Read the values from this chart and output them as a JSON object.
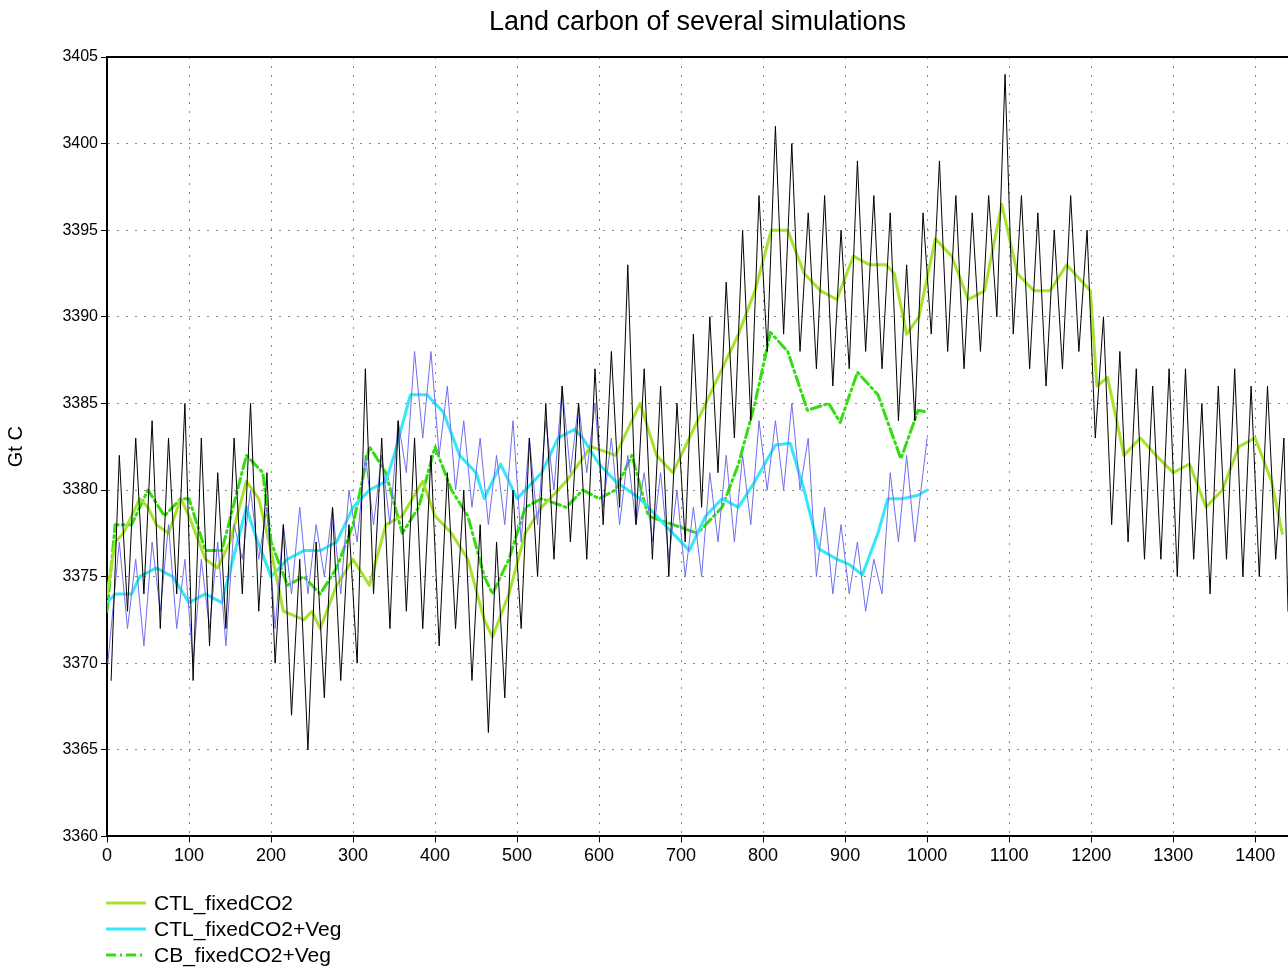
{
  "chart_data": {
    "type": "line",
    "title": "Land carbon of several simulations",
    "ylabel": "Gt C",
    "xlim": [
      0,
      1440
    ],
    "ylim": [
      3360,
      3405
    ],
    "xticks": [
      0,
      100,
      200,
      300,
      400,
      500,
      600,
      700,
      800,
      900,
      1000,
      1100,
      1200,
      1300,
      1400
    ],
    "yticks": [
      3360,
      3365,
      3370,
      3375,
      3380,
      3385,
      3390,
      3395,
      3400,
      3405
    ],
    "grid": true,
    "legend": "bottom left",
    "series": [
      {
        "color": "#000000",
        "line_style": "solid",
        "x": [
          5,
          15,
          25,
          35,
          45,
          55,
          65,
          75,
          85,
          95,
          105,
          115,
          125,
          135,
          145,
          155,
          165,
          175,
          185,
          195,
          205,
          215,
          225,
          235,
          245,
          255,
          265,
          275,
          285,
          295,
          305,
          315,
          325,
          335,
          345,
          355,
          365,
          375,
          385,
          395,
          405,
          415,
          425,
          435,
          445,
          455,
          465,
          475,
          485,
          495,
          505,
          515,
          525,
          535,
          545,
          555,
          565,
          575,
          585,
          595,
          605,
          615,
          625,
          635,
          645,
          655,
          665,
          675,
          685,
          695,
          705,
          715,
          725,
          735,
          745,
          755,
          765,
          775,
          785,
          795,
          805,
          815,
          825,
          835,
          845,
          855,
          865,
          875,
          885,
          895,
          905,
          915,
          925,
          935,
          945,
          955,
          965,
          975,
          985,
          995,
          1005,
          1015,
          1025,
          1035,
          1045,
          1055,
          1065,
          1075,
          1085,
          1095,
          1105,
          1115,
          1125,
          1135,
          1145,
          1155,
          1165,
          1175,
          1185,
          1195,
          1205,
          1215,
          1225,
          1235,
          1245,
          1255,
          1265,
          1275,
          1285,
          1295,
          1305,
          1315,
          1325,
          1335,
          1345,
          1355,
          1365,
          1375,
          1385,
          1395,
          1405,
          1415,
          1425,
          1435,
          1440
        ],
        "values": [
          3369,
          3382,
          3373,
          3383,
          3374,
          3384,
          3372,
          3383,
          3374,
          3385,
          3369,
          3383,
          3371,
          3381,
          3372,
          3383,
          3374,
          3385,
          3373,
          3381,
          3370,
          3378,
          3367,
          3376,
          3365,
          3377,
          3368,
          3379,
          3369,
          3378,
          3370,
          3387,
          3374,
          3383,
          3372,
          3384,
          3373,
          3383,
          3372,
          3382,
          3371,
          3381,
          3372,
          3380,
          3369,
          3378,
          3366,
          3377,
          3368,
          3380,
          3372,
          3383,
          3375,
          3385,
          3376,
          3386,
          3377,
          3385,
          3376,
          3387,
          3378,
          3388,
          3379,
          3393,
          3378,
          3387,
          3376,
          3386,
          3375,
          3385,
          3377,
          3389,
          3379,
          3390,
          3381,
          3392,
          3383,
          3395,
          3384,
          3397,
          3388,
          3401,
          3389,
          3400,
          3388,
          3396,
          3387,
          3397,
          3386,
          3395,
          3387,
          3399,
          3388,
          3397,
          3387,
          3396,
          3384,
          3393,
          3384,
          3396,
          3389,
          3399,
          3388,
          3397,
          3387,
          3396,
          3388,
          3397,
          3390,
          3404,
          3389,
          3397,
          3387,
          3396,
          3386,
          3395,
          3387,
          3397,
          3388,
          3395,
          3383,
          3390,
          3378,
          3388,
          3377,
          3387,
          3376,
          3386,
          3376,
          3387,
          3375,
          3387,
          3376,
          3385,
          3374,
          3386,
          3376,
          3387,
          3375,
          3386,
          3375,
          3386,
          3376,
          3383,
          3373
        ]
      },
      {
        "color": "#6f6fee",
        "line_style": "solid",
        "x": [
          1,
          15,
          25,
          35,
          45,
          55,
          65,
          75,
          85,
          95,
          105,
          115,
          125,
          135,
          145,
          155,
          165,
          175,
          185,
          195,
          205,
          215,
          225,
          235,
          245,
          255,
          265,
          275,
          285,
          295,
          305,
          315,
          325,
          335,
          345,
          355,
          365,
          375,
          385,
          395,
          405,
          415,
          425,
          435,
          445,
          455,
          465,
          475,
          485,
          495,
          505,
          515,
          525,
          535,
          545,
          555,
          565,
          575,
          585,
          595,
          605,
          615,
          625,
          635,
          645,
          655,
          665,
          675,
          685,
          695,
          705,
          715,
          725,
          735,
          745,
          755,
          765,
          775,
          785,
          795,
          805,
          815,
          825,
          835,
          845,
          855,
          865,
          875,
          885,
          895,
          905,
          915,
          925,
          935,
          945,
          955,
          965,
          975,
          985,
          995,
          1000
        ],
        "values": [
          3370,
          3377,
          3372,
          3376,
          3371,
          3377,
          3373,
          3378,
          3372,
          3376,
          3370,
          3376,
          3372,
          3377,
          3371,
          3378,
          3376,
          3380,
          3376,
          3379,
          3372,
          3378,
          3374,
          3379,
          3374,
          3378,
          3375,
          3379,
          3374,
          3380,
          3377,
          3382,
          3378,
          3382,
          3378,
          3384,
          3381,
          3388,
          3383,
          3388,
          3382,
          3386,
          3380,
          3384,
          3379,
          3383,
          3378,
          3382,
          3378,
          3384,
          3377,
          3383,
          3378,
          3384,
          3380,
          3386,
          3381,
          3385,
          3381,
          3385,
          3379,
          3383,
          3378,
          3382,
          3378,
          3381,
          3377,
          3381,
          3376,
          3380,
          3375,
          3379,
          3375,
          3381,
          3377,
          3382,
          3377,
          3382,
          3378,
          3384,
          3380,
          3384,
          3380,
          3385,
          3380,
          3383,
          3375,
          3379,
          3374,
          3378,
          3374,
          3377,
          3373,
          3376,
          3374,
          3381,
          3377,
          3382,
          3377,
          3381,
          3383
        ]
      },
      {
        "name": "CTL_fixedCO2",
        "color": "#a6e22e",
        "line_style": "solid",
        "x": [
          0,
          10,
          20,
          40,
          50,
          60,
          75,
          90,
          100,
          120,
          135,
          150,
          170,
          185,
          200,
          215,
          240,
          250,
          260,
          280,
          300,
          320,
          340,
          360,
          385,
          400,
          420,
          440,
          460,
          470,
          490,
          510,
          530,
          560,
          590,
          620,
          650,
          670,
          690,
          710,
          740,
          770,
          790,
          810,
          830,
          850,
          870,
          890,
          910,
          930,
          950,
          960,
          975,
          990,
          1010,
          1030,
          1050,
          1070,
          1091,
          1110,
          1130,
          1150,
          1170,
          1199,
          1207,
          1220,
          1240,
          1260,
          1279,
          1300,
          1320,
          1340,
          1360,
          1380,
          1400,
          1420,
          1433
        ],
        "values": [
          3374,
          3377,
          3377.5,
          3379.5,
          3379,
          3378,
          3377.5,
          3379.5,
          3378.5,
          3376,
          3375.5,
          3377,
          3380.5,
          3379.5,
          3376.5,
          3373,
          3372.5,
          3373,
          3372,
          3374.5,
          3376,
          3374.5,
          3378,
          3378.5,
          3380.5,
          3378.5,
          3377.5,
          3376,
          3372.5,
          3371.5,
          3374,
          3377.5,
          3379,
          3380.5,
          3382.5,
          3382,
          3385,
          3382,
          3381,
          3383,
          3386,
          3389,
          3391.5,
          3395,
          3395,
          3392.5,
          3391.5,
          3391,
          3393.5,
          3393,
          3393,
          3392.5,
          3389,
          3390,
          3394.5,
          3393.5,
          3391,
          3391.5,
          3396.5,
          3392.5,
          3391.5,
          3391.5,
          3393,
          3391.5,
          3386,
          3386.5,
          3382,
          3383,
          3382,
          3381,
          3381.5,
          3379,
          3380,
          3382.5,
          3383,
          3380.5,
          3377.5
        ]
      },
      {
        "name": "CTL_fixedCO2+Veg",
        "color": "#33e8f8",
        "line_style": "solid",
        "x": [
          0,
          10,
          30,
          40,
          60,
          80,
          100,
          120,
          140,
          170,
          180,
          200,
          220,
          240,
          260,
          280,
          300,
          320,
          340,
          350,
          370,
          390,
          410,
          430,
          450,
          460,
          480,
          500,
          510,
          530,
          550,
          570,
          580,
          600,
          620,
          650,
          680,
          710,
          730,
          750,
          770,
          790,
          815,
          833,
          850,
          868,
          890,
          905,
          921,
          940,
          952,
          970,
          989,
          1000
        ],
        "values": [
          3373.5,
          3374,
          3374,
          3375,
          3375.5,
          3375,
          3373.5,
          3374,
          3373.5,
          3379,
          3377.5,
          3375,
          3376,
          3376.5,
          3376.5,
          3377,
          3379,
          3380,
          3380.5,
          3382,
          3385.5,
          3385.5,
          3384.5,
          3382,
          3381,
          3379.5,
          3381.5,
          3379.5,
          3380,
          3381,
          3383,
          3383.5,
          3383,
          3381.5,
          3380.5,
          3379.5,
          3378,
          3376.5,
          3378.5,
          3379.5,
          3379,
          3380.5,
          3382.6,
          3382.7,
          3380,
          3376.6,
          3376,
          3375.7,
          3375.1,
          3377.5,
          3379.5,
          3379.5,
          3379.7,
          3380
        ]
      },
      {
        "name": "CB_fixedCO2+Veg",
        "color": "#33dd11",
        "line_style": "dashdot",
        "x": [
          0,
          10,
          30,
          50,
          70,
          90,
          100,
          120,
          140,
          170,
          190,
          200,
          220,
          240,
          260,
          280,
          300,
          320,
          340,
          360,
          380,
          400,
          420,
          440,
          460,
          470,
          490,
          510,
          530,
          560,
          580,
          600,
          620,
          640,
          660,
          690,
          720,
          750,
          770,
          790,
          809,
          830,
          854,
          880,
          894,
          915,
          940,
          968,
          989,
          1000
        ],
        "values": [
          3373,
          3378,
          3378,
          3380,
          3378.5,
          3379.5,
          3379.5,
          3376.5,
          3376.5,
          3382,
          3381,
          3377,
          3374.5,
          3375,
          3374,
          3375.5,
          3378,
          3382.5,
          3381,
          3377.5,
          3379,
          3382.5,
          3380,
          3378.5,
          3375,
          3374,
          3376,
          3379,
          3379.5,
          3379,
          3380,
          3379.5,
          3380,
          3382,
          3378.5,
          3378,
          3377.5,
          3379,
          3381.5,
          3385,
          3389.1,
          3388,
          3384.6,
          3385,
          3383.9,
          3386.8,
          3385.5,
          3381.8,
          3384.6,
          3384.5
        ]
      }
    ]
  }
}
